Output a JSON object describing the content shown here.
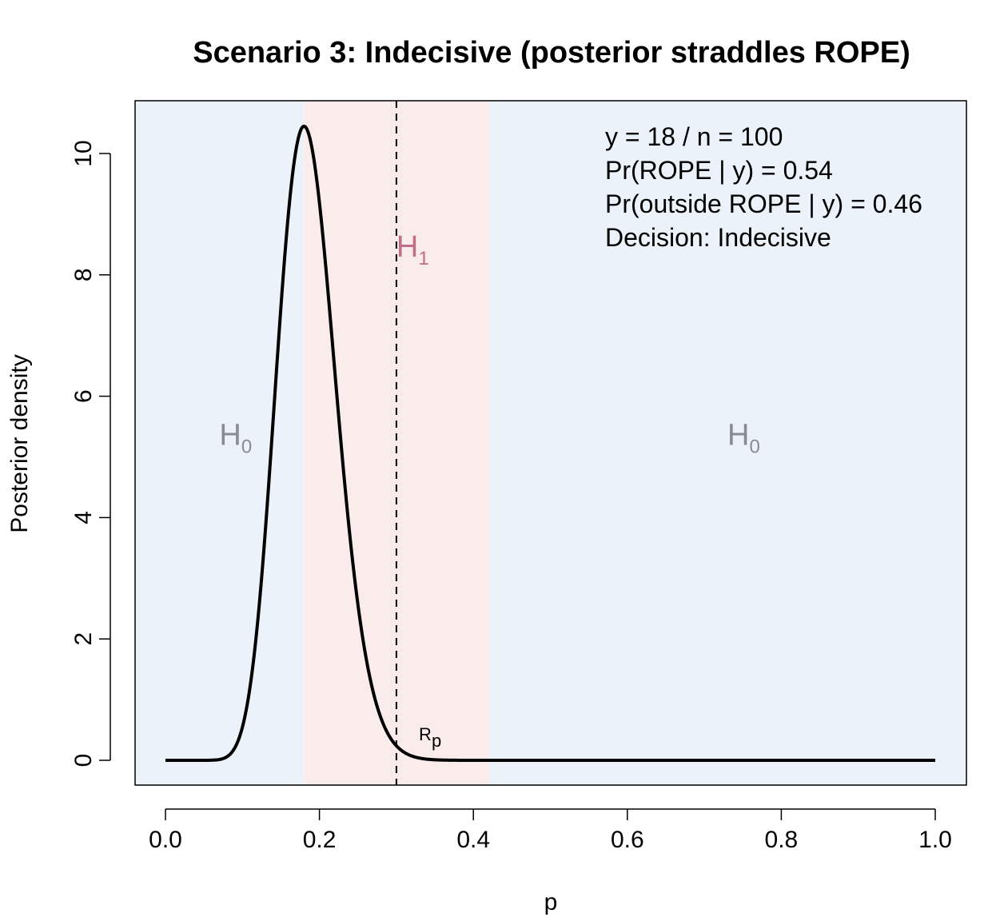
{
  "chart_data": {
    "type": "line",
    "title": "Scenario 3: Indecisive (posterior straddles ROPE)",
    "xlabel": "p",
    "ylabel": "Posterior density",
    "xlim": [
      0.0,
      1.0
    ],
    "ylim": [
      0,
      10.5
    ],
    "x_ticks": [
      "0.0",
      "0.2",
      "0.4",
      "0.6",
      "0.8",
      "1.0"
    ],
    "y_ticks": [
      "0",
      "2",
      "4",
      "6",
      "8",
      "10"
    ],
    "grid": false,
    "rope": [
      0.18,
      0.42
    ],
    "null_value": 0.3,
    "regions": [
      {
        "label": "H",
        "sub": "0",
        "x": 0.07,
        "y": 5.2,
        "color": "#8a8a95",
        "from": 0.0,
        "to": 0.18,
        "fill": "#ebf2fa"
      },
      {
        "label": "H",
        "sub": "1",
        "x": 0.3,
        "y": 8.3,
        "color": "#c06d88",
        "from": 0.18,
        "to": 0.42,
        "fill": "#fbecec"
      },
      {
        "label": "H",
        "sub": "0",
        "x": 0.73,
        "y": 5.2,
        "color": "#8a8a95",
        "from": 0.42,
        "to": 1.0,
        "fill": "#ebf2fa"
      }
    ],
    "rp_label": {
      "label": "R",
      "sub": "p",
      "x": 0.35,
      "y": 0.25
    },
    "posterior": {
      "distribution": "Beta",
      "alpha": 19,
      "beta": 83,
      "mode": 0.18,
      "peak": 10.45
    },
    "annotations": [
      "y = 18 / n = 100",
      "Pr(ROPE | y) = 0.54",
      "Pr(outside ROPE | y) = 0.46",
      "Decision: Indecisive"
    ],
    "colors": {
      "curve": "#000000",
      "frame": "#000000"
    }
  }
}
